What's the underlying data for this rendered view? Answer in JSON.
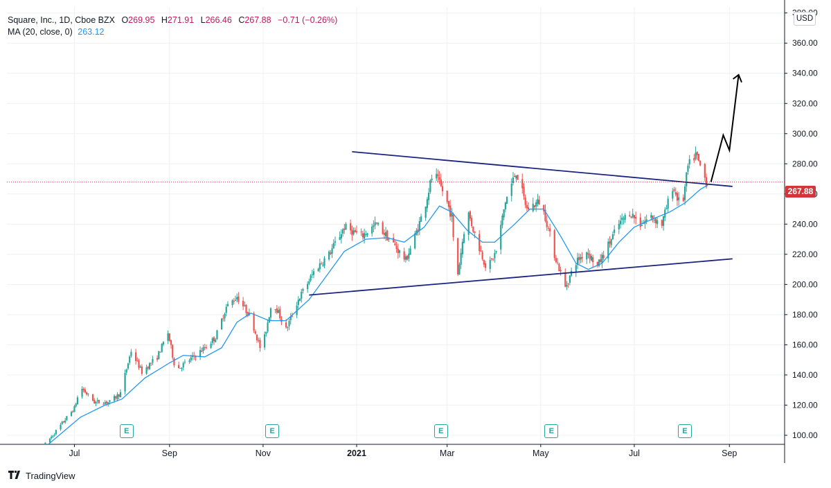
{
  "header": {
    "symbol": "Square, Inc., 1D, Cboe BZX",
    "open_label": "O",
    "open": "269.95",
    "high_label": "H",
    "high": "271.91",
    "low_label": "L",
    "low": "266.46",
    "close_label": "C",
    "close": "267.88",
    "change": "−0.71 (−0.26%)",
    "ma_label": "MA (20, close, 0)",
    "ma_value": "263.12"
  },
  "currency": "USD",
  "last_price": "267.88",
  "branding": "TradingView",
  "earnings_badge": "E",
  "colors": {
    "up": "#26a69a",
    "down": "#ef5350",
    "ma": "#2196f3",
    "trendline": "#1a237e",
    "projection": "#000000",
    "last_price": "#d1363a"
  },
  "chart_data": {
    "type": "candlestick",
    "y_ticks": [
      "100.00",
      "120.00",
      "140.00",
      "160.00",
      "180.00",
      "200.00",
      "220.00",
      "240.00",
      "260.00",
      "280.00",
      "300.00",
      "320.00",
      "340.00",
      "360.00",
      "380.00"
    ],
    "ylim": [
      94,
      384
    ],
    "x_ticks": [
      {
        "label": "Jul",
        "date": "2020-07-01"
      },
      {
        "label": "Sep",
        "date": "2020-09-01"
      },
      {
        "label": "Nov",
        "date": "2020-11-01"
      },
      {
        "label": "2021",
        "date": "2021-01-01"
      },
      {
        "label": "Mar",
        "date": "2021-03-01"
      },
      {
        "label": "May",
        "date": "2021-05-01"
      },
      {
        "label": "Jul",
        "date": "2021-07-01"
      },
      {
        "label": "Sep",
        "date": "2021-09-01"
      }
    ],
    "xlim": [
      "2020-05-18",
      "2021-10-07"
    ],
    "price_anchors": [
      [
        "2020-06-12",
        94
      ],
      [
        "2020-06-20",
        104
      ],
      [
        "2020-07-01",
        118
      ],
      [
        "2020-07-05",
        132
      ],
      [
        "2020-07-14",
        122
      ],
      [
        "2020-07-24",
        122
      ],
      [
        "2020-07-31",
        128
      ],
      [
        "2020-08-07",
        156
      ],
      [
        "2020-08-14",
        142
      ],
      [
        "2020-08-24",
        152
      ],
      [
        "2020-08-31",
        168
      ],
      [
        "2020-09-05",
        143
      ],
      [
        "2020-09-14",
        150
      ],
      [
        "2020-09-24",
        158
      ],
      [
        "2020-10-01",
        165
      ],
      [
        "2020-10-08",
        185
      ],
      [
        "2020-10-15",
        192
      ],
      [
        "2020-10-24",
        178
      ],
      [
        "2020-10-31",
        155
      ],
      [
        "2020-11-07",
        190
      ],
      [
        "2020-11-16",
        170
      ],
      [
        "2020-11-24",
        190
      ],
      [
        "2020-12-05",
        210
      ],
      [
        "2020-12-14",
        220
      ],
      [
        "2020-12-24",
        238
      ],
      [
        "2021-01-04",
        232
      ],
      [
        "2021-01-14",
        240
      ],
      [
        "2021-01-24",
        228
      ],
      [
        "2021-02-02",
        216
      ],
      [
        "2021-02-08",
        232
      ],
      [
        "2021-02-14",
        250
      ],
      [
        "2021-02-20",
        275
      ],
      [
        "2021-02-27",
        260
      ],
      [
        "2021-03-04",
        245
      ],
      [
        "2021-03-07",
        200
      ],
      [
        "2021-03-14",
        250
      ],
      [
        "2021-03-20",
        230
      ],
      [
        "2021-03-27",
        210
      ],
      [
        "2021-04-02",
        222
      ],
      [
        "2021-04-08",
        255
      ],
      [
        "2021-04-15",
        275
      ],
      [
        "2021-04-22",
        250
      ],
      [
        "2021-04-30",
        255
      ],
      [
        "2021-05-04",
        245
      ],
      [
        "2021-05-10",
        220
      ],
      [
        "2021-05-17",
        198
      ],
      [
        "2021-05-24",
        215
      ],
      [
        "2021-05-31",
        222
      ],
      [
        "2021-06-07",
        212
      ],
      [
        "2021-06-14",
        226
      ],
      [
        "2021-06-21",
        240
      ],
      [
        "2021-06-28",
        248
      ],
      [
        "2021-07-05",
        240
      ],
      [
        "2021-07-12",
        245
      ],
      [
        "2021-07-19",
        240
      ],
      [
        "2021-07-26",
        265
      ],
      [
        "2021-08-01",
        250
      ],
      [
        "2021-08-05",
        278
      ],
      [
        "2021-08-10",
        286
      ],
      [
        "2021-08-17",
        268
      ]
    ],
    "ma_anchors": [
      [
        "2020-06-14",
        94
      ],
      [
        "2020-07-05",
        112
      ],
      [
        "2020-07-21",
        120
      ],
      [
        "2020-08-01",
        124
      ],
      [
        "2020-08-16",
        138
      ],
      [
        "2020-09-01",
        148
      ],
      [
        "2020-09-10",
        153
      ],
      [
        "2020-09-24",
        152
      ],
      [
        "2020-10-05",
        158
      ],
      [
        "2020-10-15",
        175
      ],
      [
        "2020-10-24",
        181
      ],
      [
        "2020-11-05",
        176
      ],
      [
        "2020-11-16",
        176
      ],
      [
        "2020-12-01",
        190
      ],
      [
        "2020-12-14",
        208
      ],
      [
        "2020-12-24",
        222
      ],
      [
        "2021-01-07",
        230
      ],
      [
        "2021-01-21",
        231
      ],
      [
        "2021-02-01",
        228
      ],
      [
        "2021-02-14",
        238
      ],
      [
        "2021-02-24",
        252
      ],
      [
        "2021-03-04",
        248
      ],
      [
        "2021-03-14",
        236
      ],
      [
        "2021-03-24",
        228
      ],
      [
        "2021-04-01",
        228
      ],
      [
        "2021-04-14",
        240
      ],
      [
        "2021-04-24",
        250
      ],
      [
        "2021-05-03",
        250
      ],
      [
        "2021-05-14",
        232
      ],
      [
        "2021-05-24",
        214
      ],
      [
        "2021-06-01",
        210
      ],
      [
        "2021-06-10",
        214
      ],
      [
        "2021-06-21",
        228
      ],
      [
        "2021-07-01",
        238
      ],
      [
        "2021-07-12",
        243
      ],
      [
        "2021-07-24",
        248
      ],
      [
        "2021-08-03",
        254
      ],
      [
        "2021-08-13",
        263
      ],
      [
        "2021-08-18",
        266
      ]
    ],
    "trendlines": [
      {
        "name": "upper-trendline",
        "start": [
          "2020-12-29",
          288
        ],
        "end": [
          "2021-09-03",
          265
        ]
      },
      {
        "name": "lower-trendline",
        "start": [
          "2020-12-01",
          193
        ],
        "end": [
          "2021-09-03",
          217
        ]
      }
    ],
    "projection": [
      [
        "2021-08-20",
        268
      ],
      [
        "2021-08-28",
        299
      ],
      [
        "2021-09-01",
        289
      ],
      [
        "2021-09-07",
        339
      ],
      [
        "2021-09-09",
        334
      ]
    ],
    "earnings_dates": [
      "2020-08-04",
      "2020-11-07",
      "2021-02-25",
      "2021-05-08",
      "2021-08-03"
    ],
    "last_price_line": 267.88
  }
}
